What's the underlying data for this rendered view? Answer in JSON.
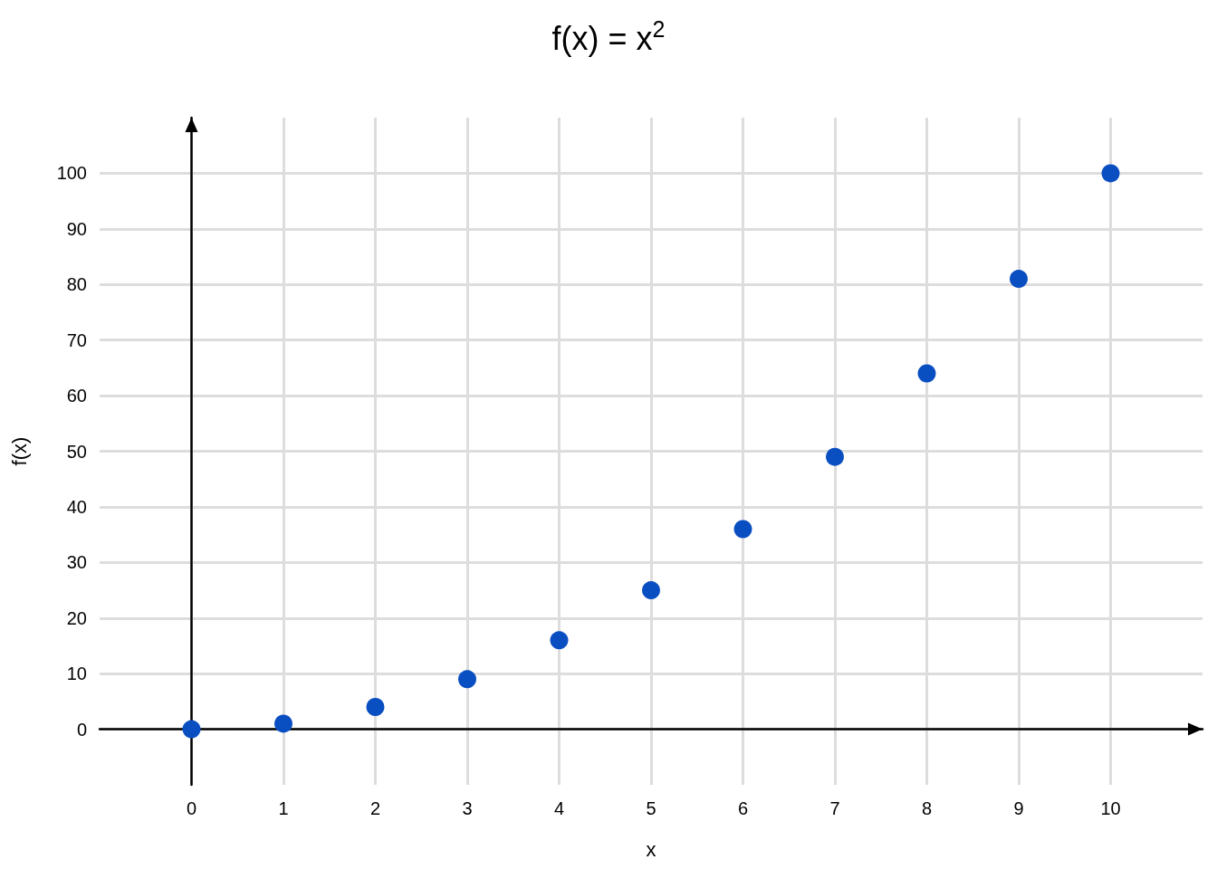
{
  "chart_data": {
    "type": "scatter",
    "title": "f(x) = x$^{2}$",
    "xlabel": "x",
    "ylabel": "f(x)",
    "x": [
      0,
      1,
      2,
      3,
      4,
      5,
      6,
      7,
      8,
      9,
      10
    ],
    "values": [
      0,
      1,
      4,
      9,
      16,
      25,
      36,
      49,
      64,
      81,
      100
    ],
    "color": "#0a4fc2",
    "marker": "circle",
    "xlim": [
      -1,
      11
    ],
    "xticks": [
      0,
      1,
      2,
      3,
      4,
      5,
      6,
      7,
      8,
      9,
      10
    ],
    "ylim": [
      -10,
      110
    ],
    "yticks": [
      0,
      10,
      20,
      30,
      40,
      50,
      60,
      70,
      80,
      90,
      100
    ],
    "grid": true
  }
}
